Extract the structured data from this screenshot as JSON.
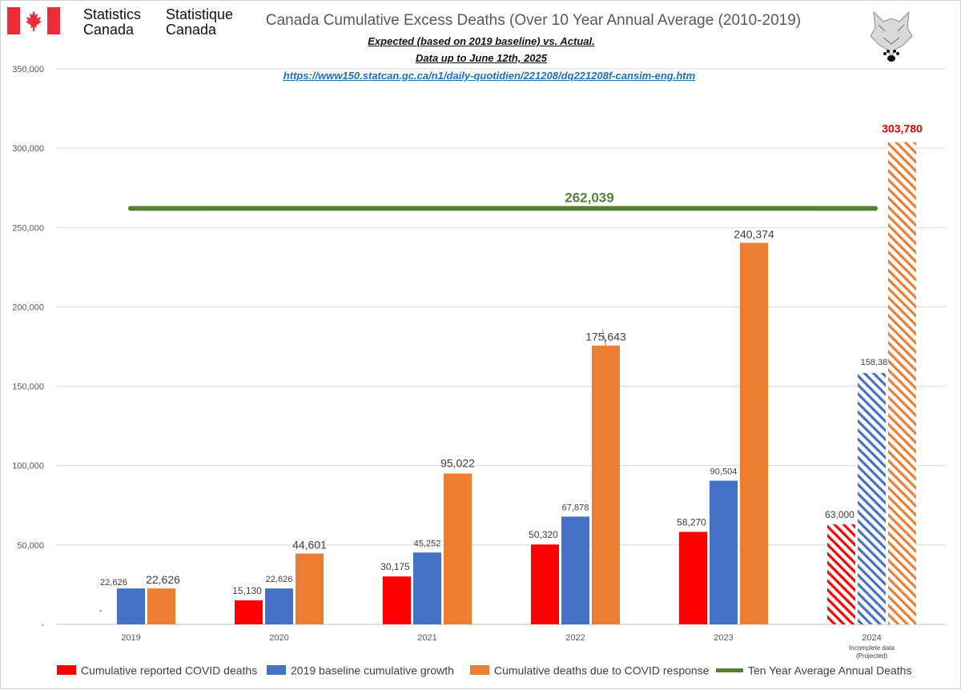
{
  "header": {
    "logo_en_line1": "Statistics",
    "logo_en_line2": "Canada",
    "logo_fr_line1": "Statistique",
    "logo_fr_line2": "Canada",
    "title": "Canada Cumulative Excess Deaths (Over 10 Year Annual Average (2010-2019)",
    "subtitle_line1": "Expected (based on 2019 baseline) vs. Actual.",
    "subtitle_line2": "Data up to June 12th, 2025",
    "source_url": "https://www150.statcan.gc.ca/n1/daily-quotidien/221208/dq221208f-cansim-eng.htm"
  },
  "colors": {
    "covid": "#ff0000",
    "baseline": "#4472c4",
    "response": "#ed7d31",
    "average": "#548235",
    "grid": "#d9d9d9",
    "axis_text": "#595959",
    "highlight_label": "#e00000"
  },
  "icons": {
    "flag": "maple-leaf-flag-icon",
    "wolf": "wolf-head-paw-icon"
  },
  "chart_data": {
    "type": "bar",
    "categories": [
      "2019",
      "2020",
      "2021",
      "2022",
      "2023",
      "2024"
    ],
    "category_note": {
      "category": "2024",
      "lines": [
        "Incomplete data",
        "(Projected)"
      ]
    },
    "ylim": [
      0,
      350000
    ],
    "yticks": [
      0,
      50000,
      100000,
      150000,
      200000,
      250000,
      300000,
      350000
    ],
    "ytick_labels": [
      "-",
      "50,000",
      "100,000",
      "150,000",
      "200,000",
      "250,000",
      "300,000",
      "350,000"
    ],
    "grid": true,
    "legend_position": "bottom",
    "series": [
      {
        "name": "Cumulative reported COVID deaths",
        "color": "#ff0000",
        "values": [
          0,
          15130,
          30175,
          50320,
          58270,
          63000
        ],
        "labels": [
          "-",
          "15,130",
          "30,175",
          "50,320",
          "58,270",
          "63,000"
        ],
        "projected": [
          false,
          false,
          false,
          false,
          false,
          true
        ]
      },
      {
        "name": "2019 baseline cumulative growth",
        "color": "#4472c4",
        "values": [
          22626,
          22626,
          45252,
          67878,
          90504,
          158382
        ],
        "labels": [
          "22,626",
          "22,626",
          "45,252",
          "67,878",
          "90,504",
          "158,382"
        ],
        "projected": [
          false,
          false,
          false,
          false,
          false,
          true
        ]
      },
      {
        "name": "Cumulative deaths due to COVID response",
        "color": "#ed7d31",
        "values": [
          22626,
          44601,
          95022,
          175643,
          240374,
          303780
        ],
        "labels": [
          "22,626",
          "44,601",
          "95,022",
          "175,643",
          "240,374",
          "303,780"
        ],
        "projected": [
          false,
          false,
          false,
          false,
          false,
          true
        ]
      }
    ],
    "reference_line": {
      "name": "Ten Year Average Annual Deaths",
      "value": 262039,
      "label": "262,039",
      "color": "#548235"
    }
  }
}
